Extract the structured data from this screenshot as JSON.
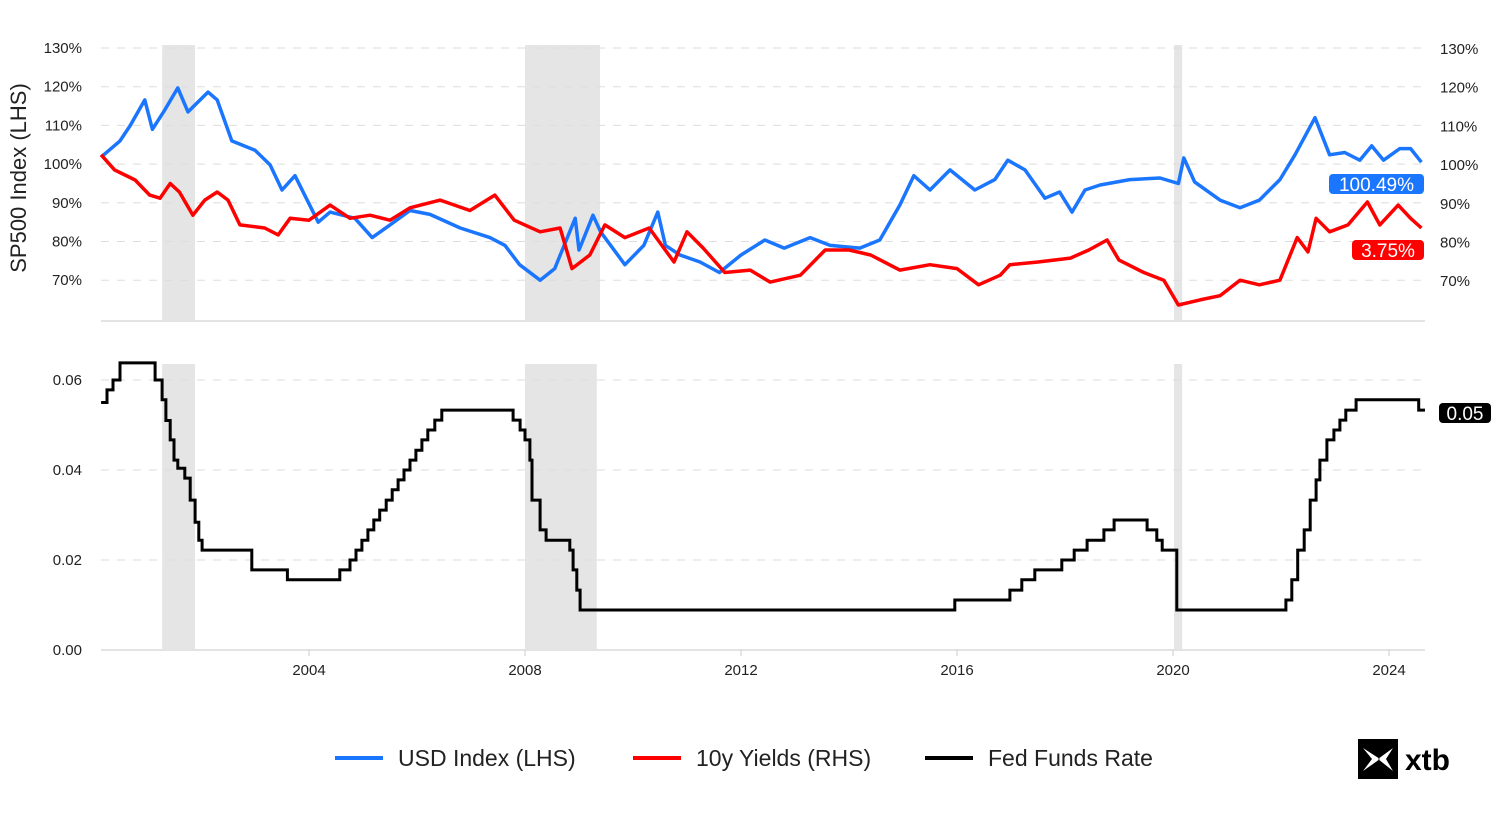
{
  "chart_data": [
    {
      "type": "line",
      "panel": "top",
      "ylabel": "SP500 Index (LHS)",
      "ylim": [
        60,
        130
      ],
      "xlim": [
        2000.15,
        2024.6
      ],
      "yticks": [
        "70%",
        "80%",
        "90%",
        "100%",
        "110%",
        "120%",
        "130%"
      ],
      "ytick_values": [
        70,
        80,
        90,
        100,
        110,
        120,
        130
      ],
      "grid": true,
      "shaded_periods": [
        [
          2001.28,
          2001.89
        ],
        [
          2008.0,
          2009.39
        ],
        [
          2020.02,
          2020.17
        ]
      ],
      "series": [
        {
          "name": "USD Index (LHS)",
          "color": "#1a75ff",
          "end_label": "100.49%",
          "points": [
            [
              2000.15,
              101.8
            ],
            [
              2000.5,
              106
            ],
            [
              2000.69,
              110
            ],
            [
              2000.96,
              116.6
            ],
            [
              2001.1,
              109
            ],
            [
              2001.33,
              114
            ],
            [
              2001.57,
              119.7
            ],
            [
              2001.76,
              113.5
            ],
            [
              2002.13,
              118.6
            ],
            [
              2002.3,
              116.6
            ],
            [
              2002.57,
              106
            ],
            [
              2003.0,
              103.6
            ],
            [
              2003.28,
              99.8
            ],
            [
              2003.5,
              93.3
            ],
            [
              2003.74,
              97
            ],
            [
              2004.17,
              85
            ],
            [
              2004.39,
              87.6
            ],
            [
              2004.85,
              86
            ],
            [
              2005.17,
              81
            ],
            [
              2005.5,
              84.3
            ],
            [
              2005.87,
              88
            ],
            [
              2006.24,
              87
            ],
            [
              2006.8,
              83.5
            ],
            [
              2007.35,
              81
            ],
            [
              2007.63,
              79
            ],
            [
              2007.9,
              74
            ],
            [
              2008.28,
              70
            ],
            [
              2008.55,
              73
            ],
            [
              2008.93,
              86
            ],
            [
              2009.0,
              77.8
            ],
            [
              2009.26,
              86.8
            ],
            [
              2009.4,
              82.5
            ],
            [
              2009.85,
              74
            ],
            [
              2010.2,
              79
            ],
            [
              2010.46,
              87.6
            ],
            [
              2010.6,
              79
            ],
            [
              2010.87,
              76.5
            ],
            [
              2011.24,
              74.7
            ],
            [
              2011.6,
              72
            ],
            [
              2012.0,
              76.5
            ],
            [
              2012.44,
              80.4
            ],
            [
              2012.8,
              78.3
            ],
            [
              2013.28,
              81
            ],
            [
              2013.65,
              79
            ],
            [
              2014.2,
              78.3
            ],
            [
              2014.57,
              80.4
            ],
            [
              2014.94,
              89.4
            ],
            [
              2015.2,
              97
            ],
            [
              2015.5,
              93.3
            ],
            [
              2015.87,
              98.5
            ],
            [
              2016.33,
              93.3
            ],
            [
              2016.7,
              96
            ],
            [
              2016.94,
              101
            ],
            [
              2017.26,
              98.5
            ],
            [
              2017.63,
              91.2
            ],
            [
              2017.9,
              92.8
            ],
            [
              2018.13,
              87.6
            ],
            [
              2018.37,
              93.3
            ],
            [
              2018.65,
              94.6
            ],
            [
              2019.2,
              96
            ],
            [
              2019.76,
              96.4
            ],
            [
              2020.1,
              95
            ],
            [
              2020.2,
              101.6
            ],
            [
              2020.4,
              95.4
            ],
            [
              2020.87,
              90.7
            ],
            [
              2021.24,
              88.7
            ],
            [
              2021.6,
              90.7
            ],
            [
              2021.98,
              96
            ],
            [
              2022.26,
              102.4
            ],
            [
              2022.63,
              112
            ],
            [
              2022.9,
              102.4
            ],
            [
              2023.18,
              103
            ],
            [
              2023.46,
              101
            ],
            [
              2023.68,
              104.7
            ],
            [
              2023.9,
              101
            ],
            [
              2024.2,
              104
            ],
            [
              2024.4,
              104
            ],
            [
              2024.6,
              100.49
            ]
          ]
        },
        {
          "name": "10y Yields (RHS)",
          "color": "#ff0000",
          "end_label": "3.75%",
          "points": [
            [
              2000.15,
              102.4
            ],
            [
              2000.4,
              98.5
            ],
            [
              2000.78,
              95.9
            ],
            [
              2001.05,
              92
            ],
            [
              2001.24,
              91.2
            ],
            [
              2001.43,
              95
            ],
            [
              2001.6,
              92.8
            ],
            [
              2001.85,
              86.8
            ],
            [
              2002.07,
              90.7
            ],
            [
              2002.3,
              92.8
            ],
            [
              2002.5,
              90.7
            ],
            [
              2002.72,
              84.3
            ],
            [
              2003.18,
              83.5
            ],
            [
              2003.43,
              81.7
            ],
            [
              2003.65,
              86
            ],
            [
              2004.0,
              85.5
            ],
            [
              2004.39,
              89.4
            ],
            [
              2004.76,
              86
            ],
            [
              2005.13,
              86.8
            ],
            [
              2005.5,
              85.5
            ],
            [
              2005.87,
              88.7
            ],
            [
              2006.43,
              90.7
            ],
            [
              2006.98,
              88
            ],
            [
              2007.44,
              92
            ],
            [
              2007.8,
              85.5
            ],
            [
              2008.28,
              82.5
            ],
            [
              2008.65,
              83.5
            ],
            [
              2008.87,
              73
            ],
            [
              2009.2,
              76.5
            ],
            [
              2009.48,
              84.3
            ],
            [
              2009.85,
              81
            ],
            [
              2010.3,
              83.5
            ],
            [
              2010.76,
              74.7
            ],
            [
              2011.0,
              82.5
            ],
            [
              2011.3,
              78.3
            ],
            [
              2011.7,
              72
            ],
            [
              2012.17,
              72.6
            ],
            [
              2012.54,
              69.5
            ],
            [
              2013.1,
              71.3
            ],
            [
              2013.56,
              77.8
            ],
            [
              2014.0,
              77.8
            ],
            [
              2014.4,
              76.5
            ],
            [
              2014.94,
              72.6
            ],
            [
              2015.5,
              74
            ],
            [
              2016.0,
              73
            ],
            [
              2016.4,
              68.8
            ],
            [
              2016.8,
              71.3
            ],
            [
              2016.98,
              74
            ],
            [
              2017.5,
              74.7
            ],
            [
              2018.1,
              75.7
            ],
            [
              2018.44,
              77.8
            ],
            [
              2018.78,
              80.4
            ],
            [
              2019.0,
              75.2
            ],
            [
              2019.46,
              72
            ],
            [
              2019.83,
              70
            ],
            [
              2020.1,
              63.6
            ],
            [
              2020.5,
              64.9
            ],
            [
              2020.87,
              66
            ],
            [
              2021.24,
              70
            ],
            [
              2021.6,
              68.8
            ],
            [
              2021.98,
              70
            ],
            [
              2022.3,
              81
            ],
            [
              2022.5,
              77.3
            ],
            [
              2022.65,
              86
            ],
            [
              2022.9,
              82.5
            ],
            [
              2023.24,
              84.3
            ],
            [
              2023.6,
              90.2
            ],
            [
              2023.83,
              84.3
            ],
            [
              2024.17,
              89.4
            ],
            [
              2024.4,
              86
            ],
            [
              2024.6,
              83.5
            ]
          ]
        }
      ]
    },
    {
      "type": "line",
      "panel": "bottom",
      "step": true,
      "ylim": [
        0,
        0.064
      ],
      "xlim": [
        2000.15,
        2024.6
      ],
      "yticks": [
        "0.00",
        "0.02",
        "0.04",
        "0.06"
      ],
      "ytick_values": [
        0,
        0.02,
        0.04,
        0.06
      ],
      "xticks": [
        "2004",
        "2008",
        "2012",
        "2016",
        "2020",
        "2024"
      ],
      "xtick_values": [
        2004,
        2008,
        2012,
        2016,
        2020,
        2024
      ],
      "grid": true,
      "shaded_periods": [
        [
          2001.28,
          2001.89
        ],
        [
          2008.0,
          2009.33
        ],
        [
          2020.02,
          2020.17
        ]
      ],
      "series": [
        {
          "name": "Fed Funds Rate",
          "color": "#000000",
          "end_label": "0.05",
          "steps": [
            [
              2000.15,
              0.055
            ],
            [
              2000.26,
              0.0578
            ],
            [
              2000.37,
              0.06
            ],
            [
              2000.5,
              0.0638
            ],
            [
              2001.15,
              0.06
            ],
            [
              2001.28,
              0.0556
            ],
            [
              2001.35,
              0.051
            ],
            [
              2001.43,
              0.0467
            ],
            [
              2001.5,
              0.0422
            ],
            [
              2001.57,
              0.0404
            ],
            [
              2001.7,
              0.0382
            ],
            [
              2001.8,
              0.0333
            ],
            [
              2001.89,
              0.0284
            ],
            [
              2001.96,
              0.0244
            ],
            [
              2002.02,
              0.0222
            ],
            [
              2002.94,
              0.0178
            ],
            [
              2003.6,
              0.0156
            ],
            [
              2004.57,
              0.0178
            ],
            [
              2004.76,
              0.02
            ],
            [
              2004.87,
              0.0222
            ],
            [
              2004.98,
              0.0244
            ],
            [
              2005.09,
              0.0267
            ],
            [
              2005.2,
              0.0289
            ],
            [
              2005.31,
              0.0311
            ],
            [
              2005.43,
              0.0333
            ],
            [
              2005.54,
              0.0356
            ],
            [
              2005.65,
              0.0378
            ],
            [
              2005.76,
              0.04
            ],
            [
              2005.87,
              0.0422
            ],
            [
              2005.98,
              0.0444
            ],
            [
              2006.09,
              0.0467
            ],
            [
              2006.2,
              0.0489
            ],
            [
              2006.33,
              0.0511
            ],
            [
              2006.46,
              0.0533
            ],
            [
              2007.78,
              0.0511
            ],
            [
              2007.91,
              0.0489
            ],
            [
              2008.0,
              0.0467
            ],
            [
              2008.09,
              0.0422
            ],
            [
              2008.13,
              0.0333
            ],
            [
              2008.28,
              0.0267
            ],
            [
              2008.39,
              0.0244
            ],
            [
              2008.83,
              0.0222
            ],
            [
              2008.89,
              0.0178
            ],
            [
              2008.96,
              0.0133
            ],
            [
              2009.02,
              0.0089
            ],
            [
              2015.96,
              0.0111
            ],
            [
              2016.98,
              0.0133
            ],
            [
              2017.2,
              0.0156
            ],
            [
              2017.44,
              0.0178
            ],
            [
              2017.94,
              0.02
            ],
            [
              2018.17,
              0.0222
            ],
            [
              2018.41,
              0.0244
            ],
            [
              2018.72,
              0.0267
            ],
            [
              2018.91,
              0.0289
            ],
            [
              2019.52,
              0.0267
            ],
            [
              2019.7,
              0.0244
            ],
            [
              2019.8,
              0.0222
            ],
            [
              2020.07,
              0.0089
            ],
            [
              2022.09,
              0.0111
            ],
            [
              2022.2,
              0.0156
            ],
            [
              2022.31,
              0.0222
            ],
            [
              2022.43,
              0.0267
            ],
            [
              2022.54,
              0.0333
            ],
            [
              2022.65,
              0.0378
            ],
            [
              2022.72,
              0.0422
            ],
            [
              2022.85,
              0.0467
            ],
            [
              2022.98,
              0.0489
            ],
            [
              2023.09,
              0.0511
            ],
            [
              2023.2,
              0.0533
            ],
            [
              2023.39,
              0.0556
            ],
            [
              2024.55,
              0.0533
            ],
            [
              2024.6,
              0.0533
            ]
          ]
        }
      ]
    }
  ],
  "legend": {
    "placement": "bottom-center",
    "items": [
      {
        "label": "USD Index (LHS)",
        "color": "#1a75ff"
      },
      {
        "label": "10y Yields (RHS)",
        "color": "#ff0000"
      },
      {
        "label": "Fed Funds Rate",
        "color": "#000000"
      }
    ]
  },
  "logo": {
    "text": "xtb"
  }
}
